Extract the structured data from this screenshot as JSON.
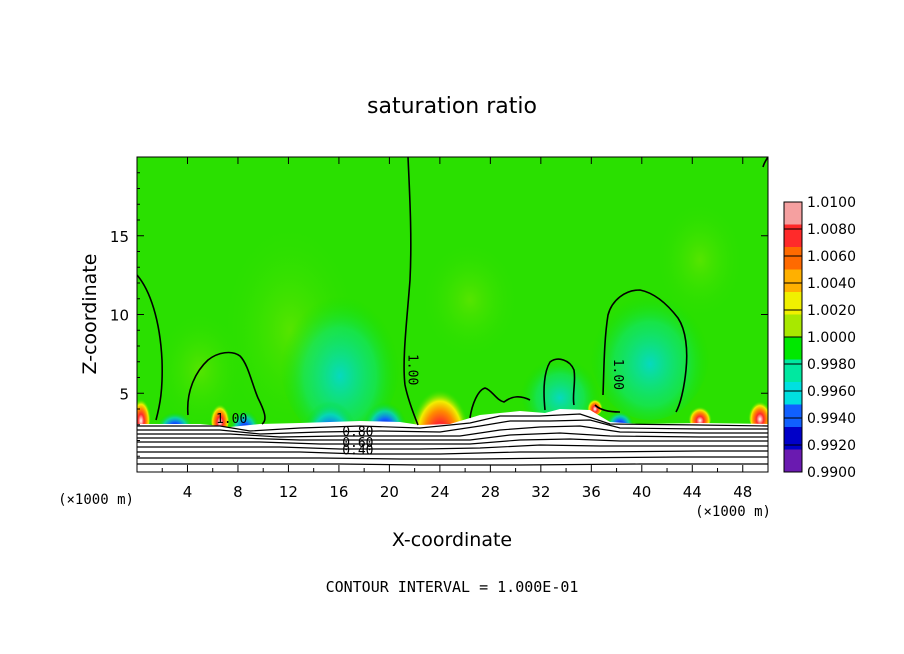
{
  "chart_data": {
    "type": "contour",
    "title": "saturation ratio",
    "xlabel": "X-coordinate",
    "ylabel": "Z-coordinate",
    "x_unit_left": "(×1000 m)",
    "x_unit_right": "(×1000 m)",
    "xlim": [
      0,
      50
    ],
    "ylim": [
      0,
      20
    ],
    "x_ticks": [
      "4",
      "8",
      "12",
      "16",
      "20",
      "24",
      "28",
      "32",
      "36",
      "40",
      "44",
      "48"
    ],
    "y_ticks": [
      "5",
      "10",
      "15"
    ],
    "footer": "CONTOUR INTERVAL = 1.000E-01",
    "colorbar": {
      "levels": [
        "1.0100",
        "1.0080",
        "1.0060",
        "1.0040",
        "1.0020",
        "1.0000",
        "0.9980",
        "0.9960",
        "0.9940",
        "0.9920",
        "0.9900"
      ],
      "colors": [
        "#f5a0a0",
        "#ff2a2a",
        "#ff6a00",
        "#ffb000",
        "#f0f000",
        "#a8e800",
        "#00e800",
        "#00e8a0",
        "#00e0e0",
        "#1060ff",
        "#0000c8",
        "#6a1ab0"
      ]
    },
    "contour_labels": [
      {
        "text": "1.00",
        "x": 7.5,
        "z": 3.1
      },
      {
        "text": "1.00",
        "x": 21.5,
        "z": 6.5,
        "rotate": 90
      },
      {
        "text": "1.00",
        "x": 37.8,
        "z": 6.2,
        "rotate": 90
      },
      {
        "text": "0.80",
        "x": 17.5,
        "z": 2.3
      },
      {
        "text": "0.60",
        "x": 17.5,
        "z": 1.6
      },
      {
        "text": "0.40",
        "x": 17.5,
        "z": 1.1
      }
    ],
    "field_background": "#2ae000",
    "terrain_color": "#ffffff"
  }
}
